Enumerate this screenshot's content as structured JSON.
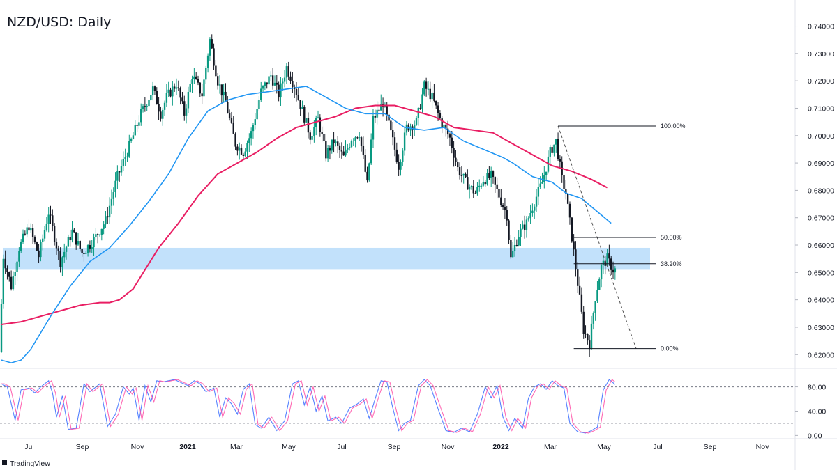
{
  "title": "NZD/USD: Daily",
  "brand": "TradingView",
  "colors": {
    "up": "#089981",
    "down": "#131722",
    "ma_long": "#e91e63",
    "ma_short": "#2196f3",
    "zone": "#bbdefb",
    "stoch_k": "#2962ff",
    "stoch_d": "#ff4da6"
  },
  "chart_data": [
    {
      "type": "candlestick",
      "title": "NZD/USD: Daily",
      "ylim": [
        0.616,
        0.747
      ],
      "y_ticks": [
        "0.74000",
        "0.73000",
        "0.72000",
        "0.71000",
        "0.70000",
        "0.69000",
        "0.68000",
        "0.67000",
        "0.66000",
        "0.65000",
        "0.64000",
        "0.63000",
        "0.62000"
      ],
      "x_ticks": [
        "Jul",
        "Sep",
        "Nov",
        "2021",
        "Mar",
        "May",
        "Jul",
        "Sep",
        "Nov",
        "2022",
        "Mar",
        "May",
        "Jul",
        "Sep",
        "Nov"
      ],
      "price_path": [
        [
          0,
          0.621
        ],
        [
          0.02,
          0.656
        ],
        [
          0.06,
          0.645
        ],
        [
          0.1,
          0.659
        ],
        [
          0.15,
          0.667
        ],
        [
          0.2,
          0.656
        ],
        [
          0.25,
          0.672
        ],
        [
          0.31,
          0.654
        ],
        [
          0.37,
          0.665
        ],
        [
          0.42,
          0.657
        ],
        [
          0.48,
          0.662
        ],
        [
          0.54,
          0.669
        ],
        [
          0.6,
          0.685
        ],
        [
          0.66,
          0.696
        ],
        [
          0.72,
          0.708
        ],
        [
          0.78,
          0.717
        ],
        [
          0.82,
          0.708
        ],
        [
          0.85,
          0.714
        ],
        [
          0.9,
          0.719
        ],
        [
          0.94,
          0.708
        ],
        [
          0.98,
          0.722
        ],
        [
          1.03,
          0.715
        ],
        [
          1.07,
          0.735
        ],
        [
          1.11,
          0.72
        ],
        [
          1.15,
          0.712
        ],
        [
          1.2,
          0.697
        ],
        [
          1.24,
          0.694
        ],
        [
          1.28,
          0.701
        ],
        [
          1.33,
          0.716
        ],
        [
          1.38,
          0.722
        ],
        [
          1.42,
          0.715
        ],
        [
          1.46,
          0.725
        ],
        [
          1.5,
          0.718
        ],
        [
          1.54,
          0.709
        ],
        [
          1.58,
          0.7
        ],
        [
          1.62,
          0.706
        ],
        [
          1.66,
          0.693
        ],
        [
          1.7,
          0.698
        ],
        [
          1.75,
          0.692
        ],
        [
          1.79,
          0.699
        ],
        [
          1.83,
          0.701
        ],
        [
          1.87,
          0.682
        ],
        [
          1.9,
          0.706
        ],
        [
          1.95,
          0.712
        ],
        [
          1.99,
          0.701
        ],
        [
          2.03,
          0.689
        ],
        [
          2.07,
          0.703
        ],
        [
          2.12,
          0.705
        ],
        [
          2.16,
          0.718
        ],
        [
          2.2,
          0.714
        ],
        [
          2.24,
          0.706
        ],
        [
          2.29,
          0.699
        ],
        [
          2.33,
          0.688
        ],
        [
          2.37,
          0.683
        ],
        [
          2.42,
          0.679
        ],
        [
          2.46,
          0.684
        ],
        [
          2.5,
          0.685
        ],
        [
          2.54,
          0.678
        ],
        [
          2.58,
          0.671
        ],
        [
          2.6,
          0.655
        ],
        [
          2.64,
          0.664
        ],
        [
          2.68,
          0.668
        ],
        [
          2.72,
          0.676
        ],
        [
          2.76,
          0.683
        ],
        [
          2.8,
          0.694
        ],
        [
          2.83,
          0.698
        ],
        [
          2.86,
          0.684
        ],
        [
          2.88,
          0.679
        ],
        [
          2.91,
          0.663
        ],
        [
          2.94,
          0.646
        ],
        [
          2.97,
          0.629
        ],
        [
          3.0,
          0.624
        ],
        [
          3.03,
          0.641
        ],
        [
          3.06,
          0.652
        ],
        [
          3.09,
          0.655
        ],
        [
          3.12,
          0.651
        ]
      ],
      "ma_long": [
        [
          0,
          0.631
        ],
        [
          0.1,
          0.632
        ],
        [
          0.2,
          0.634
        ],
        [
          0.3,
          0.636
        ],
        [
          0.4,
          0.638
        ],
        [
          0.5,
          0.639
        ],
        [
          0.55,
          0.639
        ],
        [
          0.6,
          0.64
        ],
        [
          0.67,
          0.644
        ],
        [
          0.73,
          0.651
        ],
        [
          0.8,
          0.659
        ],
        [
          0.9,
          0.668
        ],
        [
          1.0,
          0.678
        ],
        [
          1.1,
          0.686
        ],
        [
          1.2,
          0.69
        ],
        [
          1.3,
          0.694
        ],
        [
          1.4,
          0.699
        ],
        [
          1.5,
          0.703
        ],
        [
          1.6,
          0.705
        ],
        [
          1.7,
          0.707
        ],
        [
          1.8,
          0.71
        ],
        [
          1.9,
          0.711
        ],
        [
          2.0,
          0.711
        ],
        [
          2.1,
          0.709
        ],
        [
          2.2,
          0.707
        ],
        [
          2.3,
          0.703
        ],
        [
          2.4,
          0.702
        ],
        [
          2.5,
          0.701
        ],
        [
          2.6,
          0.697
        ],
        [
          2.7,
          0.693
        ],
        [
          2.8,
          0.689
        ],
        [
          2.9,
          0.687
        ],
        [
          3.0,
          0.684
        ],
        [
          3.08,
          0.681
        ]
      ],
      "ma_short": [
        [
          0,
          0.618
        ],
        [
          0.05,
          0.617
        ],
        [
          0.1,
          0.618
        ],
        [
          0.15,
          0.622
        ],
        [
          0.25,
          0.634
        ],
        [
          0.35,
          0.645
        ],
        [
          0.45,
          0.654
        ],
        [
          0.55,
          0.659
        ],
        [
          0.65,
          0.667
        ],
        [
          0.75,
          0.676
        ],
        [
          0.85,
          0.686
        ],
        [
          0.95,
          0.699
        ],
        [
          1.05,
          0.709
        ],
        [
          1.15,
          0.713
        ],
        [
          1.25,
          0.715
        ],
        [
          1.35,
          0.716
        ],
        [
          1.45,
          0.717
        ],
        [
          1.55,
          0.718
        ],
        [
          1.65,
          0.714
        ],
        [
          1.75,
          0.71
        ],
        [
          1.85,
          0.708
        ],
        [
          1.95,
          0.708
        ],
        [
          2.05,
          0.703
        ],
        [
          2.15,
          0.702
        ],
        [
          2.25,
          0.703
        ],
        [
          2.35,
          0.698
        ],
        [
          2.45,
          0.695
        ],
        [
          2.55,
          0.692
        ],
        [
          2.6,
          0.69
        ],
        [
          2.7,
          0.685
        ],
        [
          2.8,
          0.683
        ],
        [
          2.87,
          0.679
        ],
        [
          2.95,
          0.677
        ],
        [
          3.05,
          0.671
        ],
        [
          3.1,
          0.668
        ]
      ],
      "support_zone": [
        0.651,
        0.659
      ],
      "fibonacci": {
        "swing_high": 0.7035,
        "swing_low": 0.6222,
        "levels": [
          {
            "label": "100.00%",
            "price": 0.7035
          },
          {
            "label": "50.00%",
            "price": 0.6628
          },
          {
            "label": "38.20%",
            "price": 0.6532
          },
          {
            "label": "0.00%",
            "price": 0.6222
          }
        ]
      }
    },
    {
      "type": "line",
      "title": "",
      "ylim": [
        -3,
        107
      ],
      "y_ticks": [
        "80.00",
        "40.00",
        "0.00"
      ],
      "levels": [
        80,
        20
      ],
      "k_path": [
        [
          0,
          85
        ],
        [
          0.03,
          80
        ],
        [
          0.07,
          25
        ],
        [
          0.1,
          75
        ],
        [
          0.14,
          78
        ],
        [
          0.17,
          70
        ],
        [
          0.2,
          80
        ],
        [
          0.24,
          90
        ],
        [
          0.26,
          70
        ],
        [
          0.28,
          30
        ],
        [
          0.31,
          65
        ],
        [
          0.34,
          10
        ],
        [
          0.38,
          12
        ],
        [
          0.42,
          85
        ],
        [
          0.45,
          72
        ],
        [
          0.5,
          85
        ],
        [
          0.54,
          15
        ],
        [
          0.58,
          35
        ],
        [
          0.62,
          80
        ],
        [
          0.65,
          68
        ],
        [
          0.67,
          78
        ],
        [
          0.7,
          25
        ],
        [
          0.73,
          82
        ],
        [
          0.76,
          55
        ],
        [
          0.79,
          90
        ],
        [
          0.82,
          88
        ],
        [
          0.85,
          90
        ],
        [
          0.88,
          92
        ],
        [
          0.92,
          86
        ],
        [
          0.95,
          82
        ],
        [
          0.98,
          90
        ],
        [
          1.01,
          85
        ],
        [
          1.04,
          72
        ],
        [
          1.08,
          78
        ],
        [
          1.11,
          30
        ],
        [
          1.14,
          62
        ],
        [
          1.17,
          52
        ],
        [
          1.2,
          35
        ],
        [
          1.23,
          76
        ],
        [
          1.26,
          85
        ],
        [
          1.29,
          18
        ],
        [
          1.32,
          12
        ],
        [
          1.36,
          30
        ],
        [
          1.4,
          8
        ],
        [
          1.44,
          24
        ],
        [
          1.48,
          85
        ],
        [
          1.51,
          90
        ],
        [
          1.54,
          50
        ],
        [
          1.57,
          80
        ],
        [
          1.6,
          40
        ],
        [
          1.63,
          65
        ],
        [
          1.66,
          24
        ],
        [
          1.7,
          30
        ],
        [
          1.73,
          20
        ],
        [
          1.77,
          45
        ],
        [
          1.81,
          52
        ],
        [
          1.84,
          60
        ],
        [
          1.87,
          28
        ],
        [
          1.9,
          60
        ],
        [
          1.93,
          90
        ],
        [
          1.96,
          88
        ],
        [
          1.99,
          45
        ],
        [
          2.02,
          8
        ],
        [
          2.05,
          20
        ],
        [
          2.08,
          25
        ],
        [
          2.12,
          82
        ],
        [
          2.15,
          92
        ],
        [
          2.18,
          82
        ],
        [
          2.22,
          44
        ],
        [
          2.26,
          8
        ],
        [
          2.3,
          5
        ],
        [
          2.34,
          12
        ],
        [
          2.38,
          6
        ],
        [
          2.42,
          35
        ],
        [
          2.46,
          80
        ],
        [
          2.49,
          62
        ],
        [
          2.52,
          82
        ],
        [
          2.55,
          30
        ],
        [
          2.58,
          8
        ],
        [
          2.61,
          28
        ],
        [
          2.65,
          12
        ],
        [
          2.68,
          62
        ],
        [
          2.71,
          80
        ],
        [
          2.74,
          85
        ],
        [
          2.77,
          76
        ],
        [
          2.8,
          90
        ],
        [
          2.83,
          82
        ],
        [
          2.86,
          78
        ],
        [
          2.89,
          20
        ],
        [
          2.93,
          6
        ],
        [
          2.97,
          4
        ],
        [
          3.0,
          8
        ],
        [
          3.03,
          14
        ],
        [
          3.06,
          75
        ],
        [
          3.09,
          92
        ],
        [
          3.12,
          84
        ]
      ],
      "d_offset": 0.015
    }
  ]
}
